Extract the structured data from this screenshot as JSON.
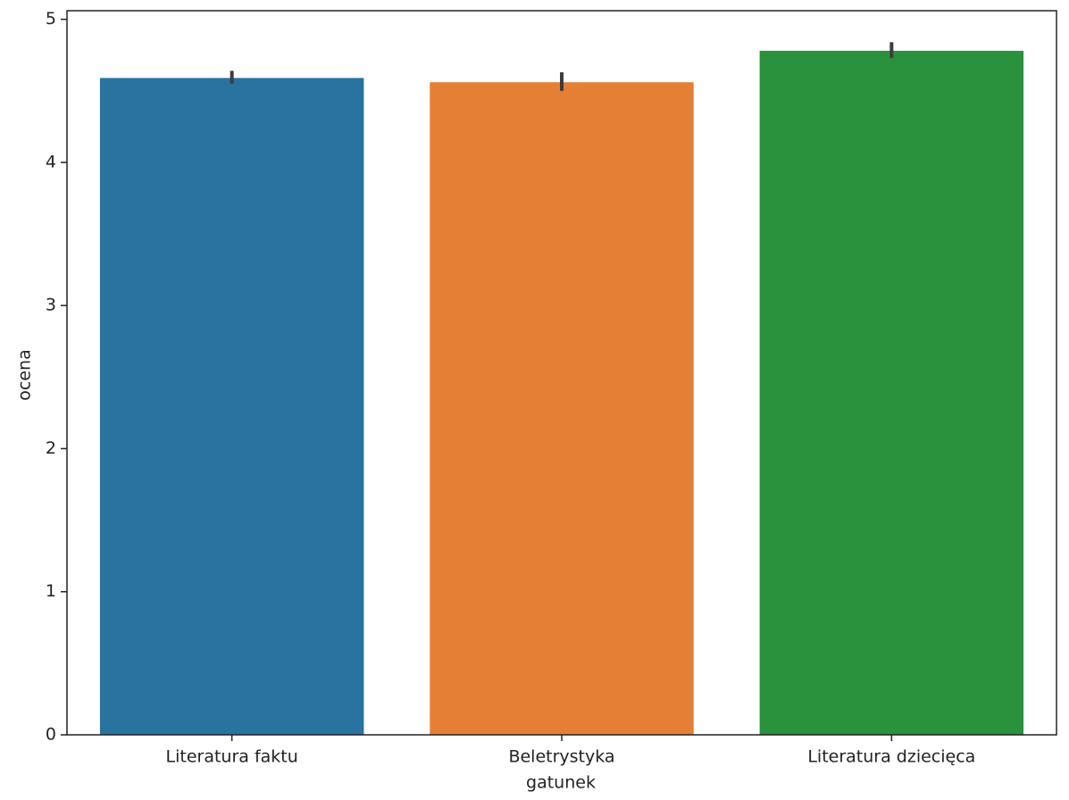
{
  "chart_data": {
    "type": "bar",
    "categories": [
      "Literatura faktu",
      "Beletrystyka",
      "Literatura dziecięca"
    ],
    "values": [
      4.59,
      4.56,
      4.78
    ],
    "ci": [
      [
        4.55,
        4.64
      ],
      [
        4.5,
        4.63
      ],
      [
        4.73,
        4.84
      ]
    ],
    "colors": [
      "#2873a0",
      "#e67f36",
      "#2a913d"
    ],
    "xlabel": "gatunek",
    "ylabel": "ocena",
    "ylim": [
      0,
      5.06
    ],
    "yticks": [
      0,
      1,
      2,
      3,
      4,
      5
    ],
    "grid": false
  }
}
